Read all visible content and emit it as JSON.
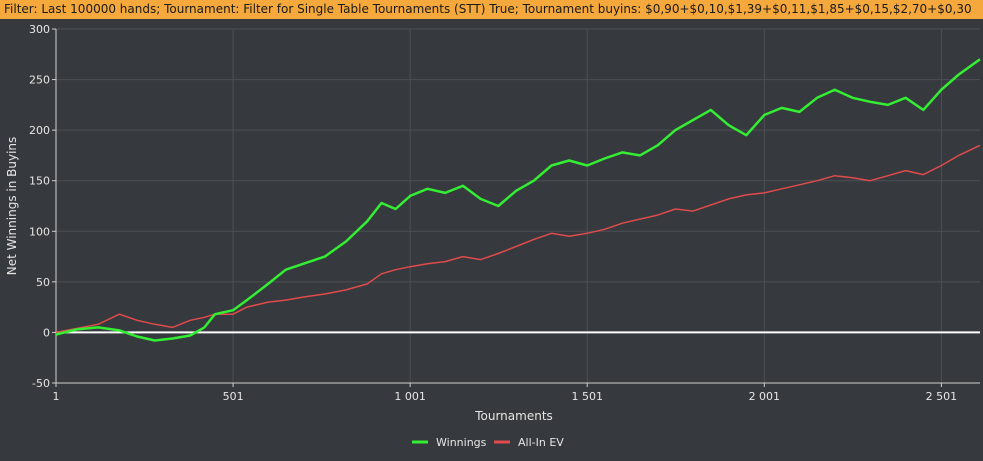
{
  "filter_bar": {
    "text": "Filter: Last 100000 hands; Tournament: Filter for Single Table Tournaments (STT) True; Tournament buyins: $0,90+$0,10,$1,39+$0,11,$1,85+$0,15,$2,70+$0,30"
  },
  "colors": {
    "background": "#36393d",
    "grid": "#4c5055",
    "filter_bar": "#f5a93c",
    "winnings": "#33ee33",
    "allin_ev": "#e04b4b",
    "zero_line": "#ffffff"
  },
  "chart_data": {
    "type": "line",
    "title": "",
    "xlabel": "Tournaments",
    "ylabel": "Net Winnings in Buyins",
    "xlim": [
      1,
      2610
    ],
    "ylim": [
      -50,
      300
    ],
    "x_ticks": [
      1,
      501,
      1001,
      1501,
      2001,
      2501
    ],
    "x_tick_labels": [
      "1",
      "501",
      "1 001",
      "1 501",
      "2 001",
      "2 501"
    ],
    "y_ticks": [
      -50,
      0,
      50,
      100,
      150,
      200,
      250,
      300
    ],
    "y_tick_labels": [
      "-50",
      "0",
      "50",
      "100",
      "150",
      "200",
      "250",
      "300"
    ],
    "grid": true,
    "legend_position": "bottom",
    "series": [
      {
        "name": "Winnings",
        "color": "#33ee33",
        "x": [
          1,
          60,
          120,
          180,
          230,
          280,
          330,
          380,
          420,
          450,
          501,
          540,
          600,
          650,
          700,
          760,
          820,
          880,
          920,
          960,
          1001,
          1050,
          1100,
          1150,
          1200,
          1250,
          1300,
          1350,
          1400,
          1450,
          1501,
          1550,
          1600,
          1650,
          1700,
          1750,
          1800,
          1850,
          1900,
          1950,
          2001,
          2050,
          2100,
          2150,
          2200,
          2250,
          2300,
          2350,
          2400,
          2450,
          2501,
          2550,
          2610
        ],
        "y": [
          -2,
          3,
          5,
          2,
          -4,
          -8,
          -6,
          -3,
          5,
          18,
          22,
          32,
          48,
          62,
          68,
          75,
          90,
          110,
          128,
          122,
          135,
          142,
          138,
          145,
          132,
          125,
          140,
          150,
          165,
          170,
          165,
          172,
          178,
          175,
          185,
          200,
          210,
          220,
          205,
          195,
          215,
          222,
          218,
          232,
          240,
          232,
          228,
          225,
          232,
          220,
          240,
          255,
          270
        ]
      },
      {
        "name": "All-In EV",
        "color": "#e04b4b",
        "x": [
          1,
          60,
          120,
          180,
          230,
          280,
          330,
          380,
          420,
          450,
          501,
          540,
          600,
          650,
          700,
          760,
          820,
          880,
          920,
          960,
          1001,
          1050,
          1100,
          1150,
          1200,
          1250,
          1300,
          1350,
          1400,
          1450,
          1501,
          1550,
          1600,
          1650,
          1700,
          1750,
          1800,
          1850,
          1900,
          1950,
          2001,
          2050,
          2100,
          2150,
          2200,
          2250,
          2300,
          2350,
          2400,
          2450,
          2501,
          2550,
          2610
        ],
        "y": [
          0,
          4,
          8,
          18,
          12,
          8,
          5,
          12,
          15,
          18,
          18,
          25,
          30,
          32,
          35,
          38,
          42,
          48,
          58,
          62,
          65,
          68,
          70,
          75,
          72,
          78,
          85,
          92,
          98,
          95,
          98,
          102,
          108,
          112,
          116,
          122,
          120,
          126,
          132,
          136,
          138,
          142,
          146,
          150,
          155,
          153,
          150,
          155,
          160,
          156,
          165,
          175,
          185
        ]
      }
    ]
  }
}
